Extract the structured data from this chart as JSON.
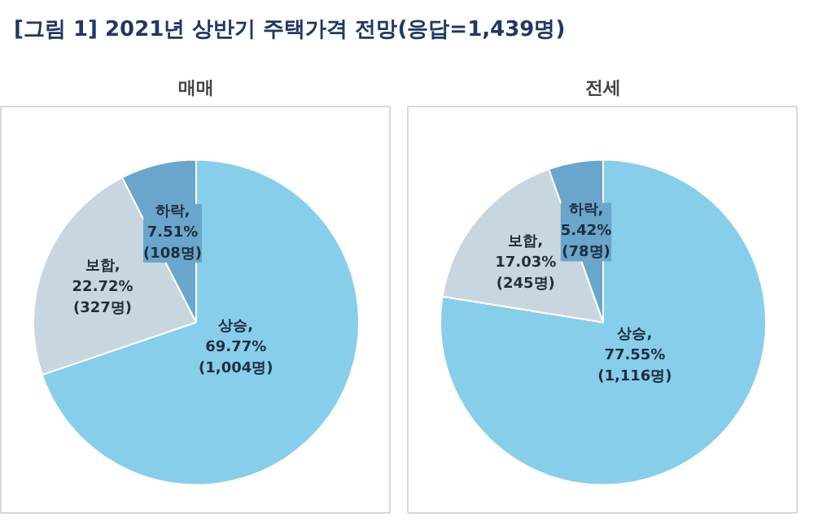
{
  "chart_data": [
    {
      "type": "pie",
      "title": "매매",
      "annotations": [
        "[그림 1] 2021년 상반기 주택가격 전망(응답=1,439명)"
      ],
      "categories": [
        "상승",
        "보합",
        "하락"
      ],
      "values": [
        69.77,
        22.72,
        7.51
      ],
      "colors": [
        "#87ceeb",
        "#c8d6df",
        "#6aa6cc"
      ],
      "value_labels": [
        ",\n69.77%\n(1,004명)",
        ",\n22.72%\n(327명)",
        ",\n7.51%\n(108명)"
      ]
    },
    {
      "type": "pie",
      "title": "전세",
      "categories": [
        "상승",
        "보합",
        "하락"
      ],
      "values": [
        77.55,
        17.03,
        5.42
      ],
      "colors": [
        "#87ceeb",
        "#c8d6df",
        "#6aa6cc"
      ],
      "value_labels": [
        ",\n77.55%\n(1,116명)",
        ",\n17.03%\n(245명)",
        ",\n5.42%\n(78명)"
      ]
    }
  ]
}
